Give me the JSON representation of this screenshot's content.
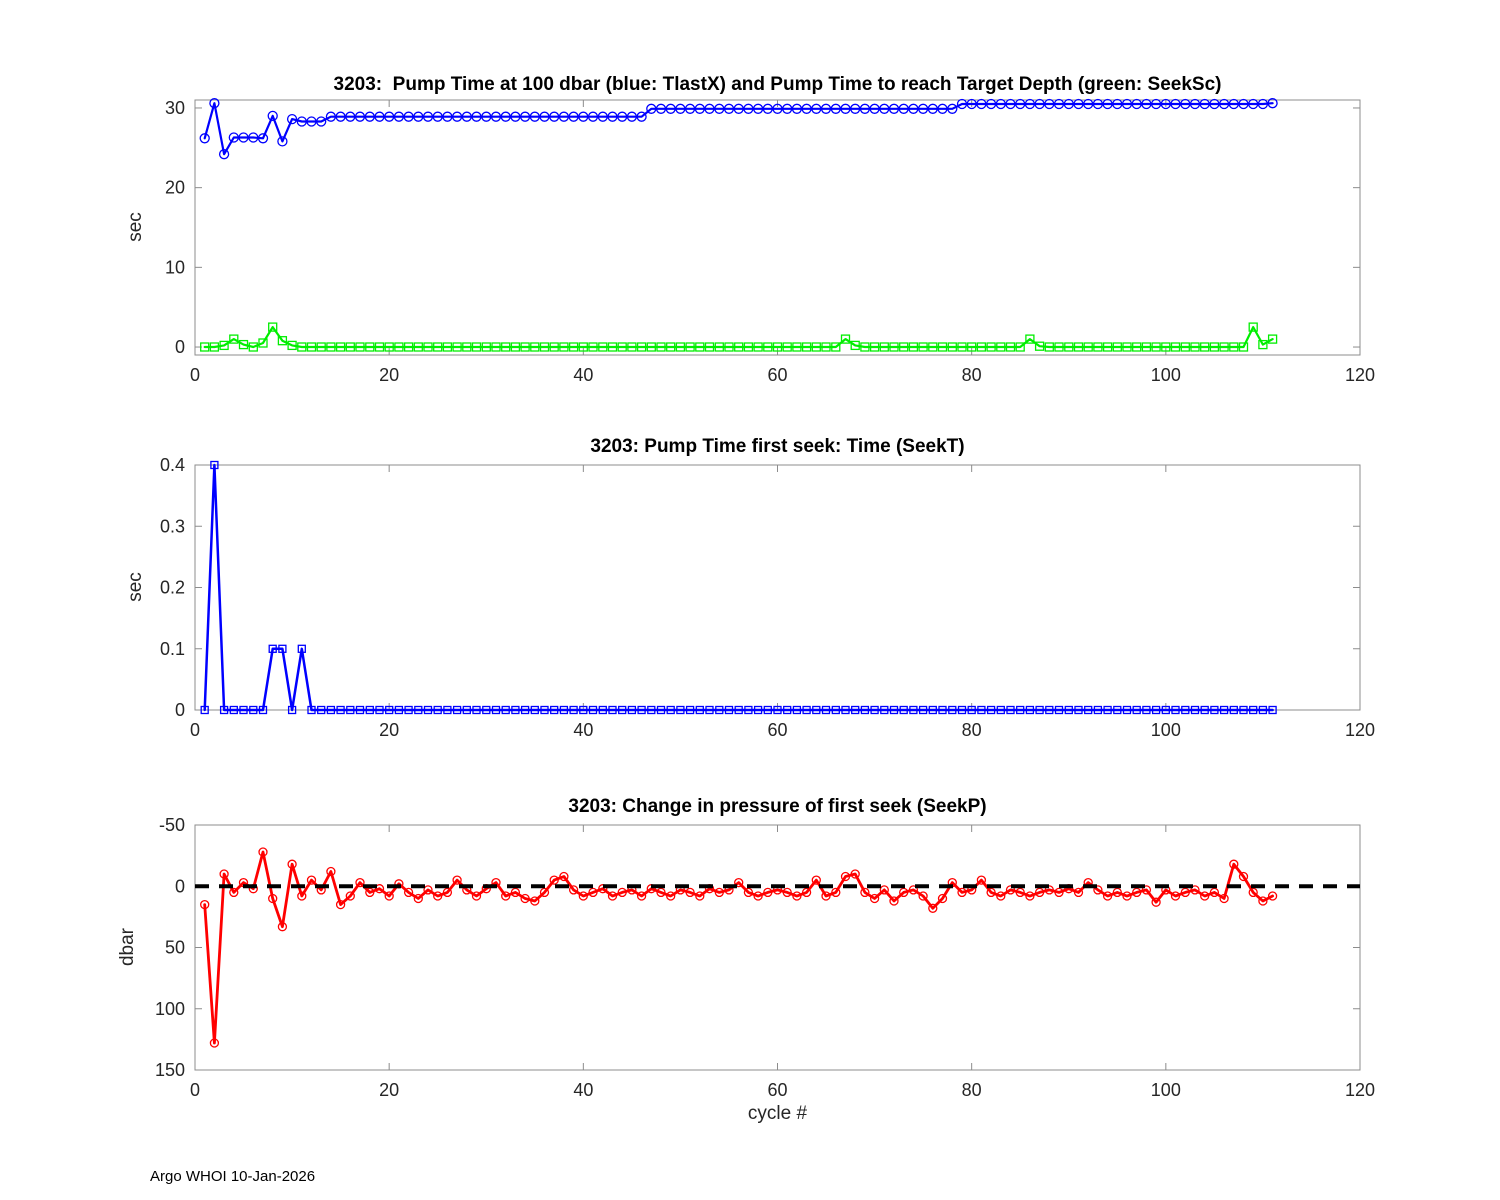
{
  "footer": "Argo WHOI 10-Jan-2026",
  "colors": {
    "axis": "#8c8c8c",
    "text": "#262626",
    "blue": "#0000ff",
    "green": "#00ee00",
    "red": "#ff0000",
    "reference_black": "#000000"
  },
  "chart_data": [
    {
      "type": "line",
      "title": "3203:  Pump Time at 100 dbar (blue: TlastX) and Pump Time to reach Target Depth (green: SeekSc)",
      "xlabel": "",
      "ylabel": "sec",
      "xlim": [
        0,
        120
      ],
      "ylim": [
        -1,
        31
      ],
      "xticks": [
        0,
        20,
        40,
        60,
        80,
        100,
        120
      ],
      "yticks": [
        0,
        10,
        20,
        30
      ],
      "grid": false,
      "legend_position": "none",
      "x": [
        1,
        2,
        3,
        4,
        5,
        6,
        7,
        8,
        9,
        10,
        11,
        12,
        13,
        14,
        15,
        16,
        17,
        18,
        19,
        20,
        21,
        22,
        23,
        24,
        25,
        26,
        27,
        28,
        29,
        30,
        31,
        32,
        33,
        34,
        35,
        36,
        37,
        38,
        39,
        40,
        41,
        42,
        43,
        44,
        45,
        46,
        47,
        48,
        49,
        50,
        51,
        52,
        53,
        54,
        55,
        56,
        57,
        58,
        59,
        60,
        61,
        62,
        63,
        64,
        65,
        66,
        67,
        68,
        69,
        70,
        71,
        72,
        73,
        74,
        75,
        76,
        77,
        78,
        79,
        80,
        81,
        82,
        83,
        84,
        85,
        86,
        87,
        88,
        89,
        90,
        91,
        92,
        93,
        94,
        95,
        96,
        97,
        98,
        99,
        100,
        101,
        102,
        103,
        104,
        105,
        106,
        107,
        108,
        109,
        110,
        111
      ],
      "series": [
        {
          "name": "TlastX",
          "color": "#0000ff",
          "marker": "circle",
          "marker_size": 4.5,
          "line_width": 2.2,
          "values": [
            26.2,
            30.6,
            24.2,
            26.3,
            26.3,
            26.3,
            26.2,
            29,
            25.8,
            28.6,
            28.3,
            28.3,
            28.3,
            28.9,
            28.9,
            28.9,
            28.9,
            28.9,
            28.9,
            28.9,
            28.9,
            28.9,
            28.9,
            28.9,
            28.9,
            28.9,
            28.9,
            28.9,
            28.9,
            28.9,
            28.9,
            28.9,
            28.9,
            28.9,
            28.9,
            28.9,
            28.9,
            28.9,
            28.9,
            28.9,
            28.9,
            28.9,
            28.9,
            28.9,
            28.9,
            28.9,
            29.9,
            29.9,
            29.9,
            29.9,
            29.9,
            29.9,
            29.9,
            29.9,
            29.9,
            29.9,
            29.9,
            29.9,
            29.9,
            29.9,
            29.9,
            29.9,
            29.9,
            29.9,
            29.9,
            29.9,
            29.9,
            29.9,
            29.9,
            29.9,
            29.9,
            29.9,
            29.9,
            29.9,
            29.9,
            29.9,
            29.9,
            29.9,
            30.5,
            30.5,
            30.5,
            30.5,
            30.5,
            30.5,
            30.5,
            30.5,
            30.5,
            30.5,
            30.5,
            30.5,
            30.5,
            30.5,
            30.5,
            30.5,
            30.5,
            30.5,
            30.5,
            30.5,
            30.5,
            30.5,
            30.5,
            30.5,
            30.5,
            30.5,
            30.5,
            30.5,
            30.5,
            30.5,
            30.5,
            30.5,
            30.6
          ]
        },
        {
          "name": "SeekSc",
          "color": "#00ee00",
          "marker": "square",
          "marker_size": 4,
          "line_width": 2.2,
          "values": [
            0,
            0,
            0.2,
            1,
            0.3,
            0,
            0.5,
            2.5,
            0.8,
            0.2,
            0,
            0,
            0,
            0,
            0,
            0,
            0,
            0,
            0,
            0,
            0,
            0,
            0,
            0,
            0,
            0,
            0,
            0,
            0,
            0,
            0,
            0,
            0,
            0,
            0,
            0,
            0,
            0,
            0,
            0,
            0,
            0,
            0,
            0,
            0,
            0,
            0,
            0,
            0,
            0,
            0,
            0,
            0,
            0,
            0,
            0,
            0,
            0,
            0,
            0,
            0,
            0,
            0,
            0,
            0,
            0,
            1,
            0.2,
            0,
            0,
            0,
            0,
            0,
            0,
            0,
            0,
            0,
            0,
            0,
            0,
            0,
            0,
            0,
            0,
            0,
            1,
            0.1,
            0,
            0,
            0,
            0,
            0,
            0,
            0,
            0,
            0,
            0,
            0,
            0,
            0,
            0,
            0,
            0,
            0,
            0,
            0,
            0,
            0,
            2.5,
            0.3,
            1
          ]
        }
      ]
    },
    {
      "type": "line",
      "title": "3203: Pump Time first seek: Time (SeekT)",
      "xlabel": "",
      "ylabel": "sec",
      "xlim": [
        0,
        120
      ],
      "ylim": [
        0,
        0.4
      ],
      "xticks": [
        0,
        20,
        40,
        60,
        80,
        100,
        120
      ],
      "yticks": [
        0,
        0.1,
        0.2,
        0.3,
        0.4
      ],
      "grid": false,
      "legend_position": "none",
      "x": [
        1,
        2,
        3,
        4,
        5,
        6,
        7,
        8,
        9,
        10,
        11,
        12,
        13,
        14,
        15,
        16,
        17,
        18,
        19,
        20,
        21,
        22,
        23,
        24,
        25,
        26,
        27,
        28,
        29,
        30,
        31,
        32,
        33,
        34,
        35,
        36,
        37,
        38,
        39,
        40,
        41,
        42,
        43,
        44,
        45,
        46,
        47,
        48,
        49,
        50,
        51,
        52,
        53,
        54,
        55,
        56,
        57,
        58,
        59,
        60,
        61,
        62,
        63,
        64,
        65,
        66,
        67,
        68,
        69,
        70,
        71,
        72,
        73,
        74,
        75,
        76,
        77,
        78,
        79,
        80,
        81,
        82,
        83,
        84,
        85,
        86,
        87,
        88,
        89,
        90,
        91,
        92,
        93,
        94,
        95,
        96,
        97,
        98,
        99,
        100,
        101,
        102,
        103,
        104,
        105,
        106,
        107,
        108,
        109,
        110,
        111
      ],
      "series": [
        {
          "name": "SeekT",
          "color": "#0000ff",
          "marker": "square",
          "marker_size": 3.5,
          "line_width": 2.5,
          "values": [
            0,
            0.4,
            0,
            0,
            0,
            0,
            0,
            0.1,
            0.1,
            0,
            0.1,
            0,
            0,
            0,
            0,
            0,
            0,
            0,
            0,
            0,
            0,
            0,
            0,
            0,
            0,
            0,
            0,
            0,
            0,
            0,
            0,
            0,
            0,
            0,
            0,
            0,
            0,
            0,
            0,
            0,
            0,
            0,
            0,
            0,
            0,
            0,
            0,
            0,
            0,
            0,
            0,
            0,
            0,
            0,
            0,
            0,
            0,
            0,
            0,
            0,
            0,
            0,
            0,
            0,
            0,
            0,
            0,
            0,
            0,
            0,
            0,
            0,
            0,
            0,
            0,
            0,
            0,
            0,
            0,
            0,
            0,
            0,
            0,
            0,
            0,
            0,
            0,
            0,
            0,
            0,
            0,
            0,
            0,
            0,
            0,
            0,
            0,
            0,
            0,
            0,
            0,
            0,
            0,
            0,
            0,
            0,
            0,
            0,
            0,
            0,
            0
          ]
        }
      ]
    },
    {
      "type": "line",
      "title": "3203: Change in pressure of first seek (SeekP)",
      "xlabel": "cycle #",
      "ylabel": "dbar",
      "xlim": [
        0,
        120
      ],
      "ylim": [
        -50,
        150
      ],
      "y_inverted": true,
      "xticks": [
        0,
        20,
        40,
        60,
        80,
        100,
        120
      ],
      "yticks": [
        -50,
        0,
        50,
        100,
        150
      ],
      "grid": false,
      "legend_position": "none",
      "ref_line": {
        "y": 0,
        "style": "dashed",
        "color": "#000000"
      },
      "x": [
        1,
        2,
        3,
        4,
        5,
        6,
        7,
        8,
        9,
        10,
        11,
        12,
        13,
        14,
        15,
        16,
        17,
        18,
        19,
        20,
        21,
        22,
        23,
        24,
        25,
        26,
        27,
        28,
        29,
        30,
        31,
        32,
        33,
        34,
        35,
        36,
        37,
        38,
        39,
        40,
        41,
        42,
        43,
        44,
        45,
        46,
        47,
        48,
        49,
        50,
        51,
        52,
        53,
        54,
        55,
        56,
        57,
        58,
        59,
        60,
        61,
        62,
        63,
        64,
        65,
        66,
        67,
        68,
        69,
        70,
        71,
        72,
        73,
        74,
        75,
        76,
        77,
        78,
        79,
        80,
        81,
        82,
        83,
        84,
        85,
        86,
        87,
        88,
        89,
        90,
        91,
        92,
        93,
        94,
        95,
        96,
        97,
        98,
        99,
        100,
        101,
        102,
        103,
        104,
        105,
        106,
        107,
        108,
        109,
        110,
        111
      ],
      "series": [
        {
          "name": "SeekP",
          "color": "#ff0000",
          "marker": "circle",
          "marker_size": 4,
          "line_width": 2.8,
          "values": [
            15,
            128,
            -10,
            5,
            -3,
            2,
            -28,
            10,
            33,
            -18,
            8,
            -5,
            3,
            -12,
            15,
            8,
            -3,
            5,
            2,
            8,
            -2,
            5,
            10,
            3,
            8,
            5,
            -5,
            3,
            8,
            2,
            -3,
            8,
            5,
            10,
            12,
            5,
            -5,
            -8,
            3,
            8,
            5,
            2,
            8,
            5,
            3,
            8,
            2,
            5,
            8,
            3,
            5,
            8,
            2,
            5,
            3,
            -3,
            5,
            8,
            5,
            3,
            5,
            8,
            5,
            -5,
            8,
            5,
            -8,
            -10,
            5,
            10,
            3,
            12,
            5,
            3,
            8,
            18,
            10,
            -3,
            5,
            3,
            -5,
            5,
            8,
            3,
            5,
            8,
            5,
            3,
            5,
            2,
            5,
            -3,
            3,
            8,
            5,
            8,
            5,
            3,
            13,
            3,
            8,
            5,
            3,
            8,
            5,
            10,
            -18,
            -8,
            5,
            12,
            8
          ]
        }
      ]
    }
  ]
}
